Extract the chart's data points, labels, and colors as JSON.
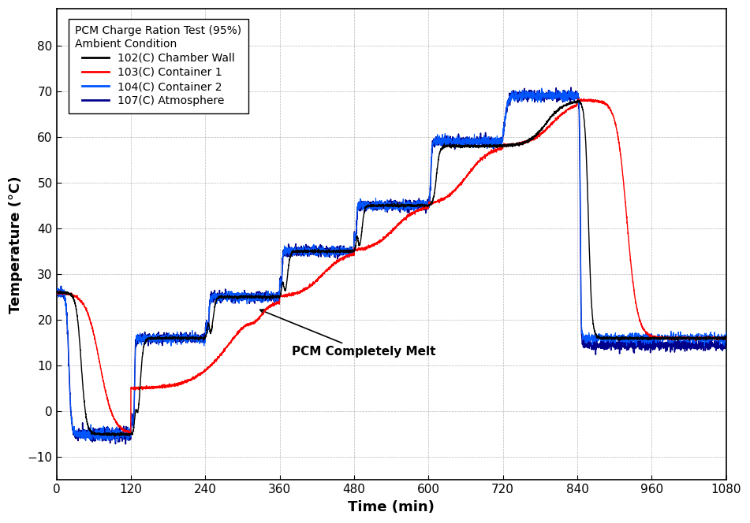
{
  "xlabel": "Time (min)",
  "ylabel": "Temperature (°C)",
  "xlim": [
    0,
    1080
  ],
  "ylim": [
    -15,
    88
  ],
  "xticks": [
    0,
    120,
    240,
    360,
    480,
    600,
    720,
    840,
    960,
    1080
  ],
  "yticks": [
    -10,
    0,
    10,
    20,
    30,
    40,
    50,
    60,
    70,
    80
  ],
  "legend_title_line1": "PCM Charge Ration Test (95%)",
  "legend_title_line2": "Ambient Condition",
  "legend_entries": [
    "102(C) Chamber Wall",
    "103(C) Container 1",
    "104(C) Container 2",
    "107(C) Atmosphere"
  ],
  "colors": {
    "ch102": "#000000",
    "ch103": "#ff0000",
    "ch104": "#0055ff",
    "ch107": "#00008b"
  },
  "annotation_text": "PCM Completely Melt",
  "background_color": "#ffffff",
  "grid_color": "#888888",
  "linewidth": 0.8
}
